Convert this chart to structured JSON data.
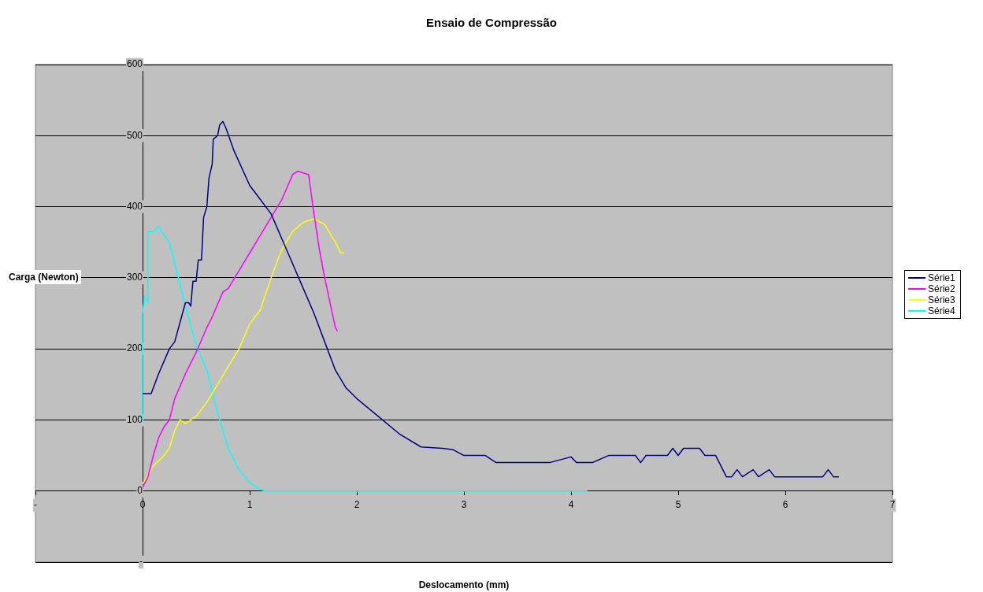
{
  "chart_data": {
    "type": "line",
    "title": "Ensaio de Compressão",
    "xlabel": "Deslocamento (mm)",
    "ylabel": "Carga (Newton)",
    "xlim": [
      -1,
      7
    ],
    "xticks": [
      {
        "value": -1,
        "label": "-"
      },
      0,
      1,
      2,
      3,
      4,
      5,
      6,
      7
    ],
    "ylim": [
      -100,
      600
    ],
    "yticks": [
      {
        "value": -100,
        "label": "-"
      },
      0,
      100,
      200,
      300,
      400,
      500,
      600
    ],
    "grid": "y",
    "legend": "right",
    "marker": "none",
    "line_style": "solid",
    "series": [
      {
        "name": "Série1",
        "color": "#000080",
        "x": [
          0,
          0.08,
          0.15,
          0.25,
          0.3,
          0.4,
          0.43,
          0.45,
          0.47,
          0.5,
          0.52,
          0.55,
          0.57,
          0.6,
          0.62,
          0.65,
          0.66,
          0.7,
          0.72,
          0.75,
          0.78,
          0.85,
          1.0,
          1.1,
          1.2,
          1.3,
          1.4,
          1.5,
          1.6,
          1.7,
          1.8,
          1.9,
          2.0,
          2.2,
          2.4,
          2.6,
          2.8,
          2.9,
          3.0,
          3.2,
          3.3,
          3.5,
          3.8,
          4.0,
          4.05,
          4.2,
          4.35,
          4.6,
          4.65,
          4.7,
          4.9,
          4.95,
          5.0,
          5.05,
          5.2,
          5.25,
          5.35,
          5.45,
          5.5,
          5.55,
          5.6,
          5.7,
          5.75,
          5.85,
          5.9,
          6.35,
          6.4,
          6.45,
          6.5
        ],
        "values": [
          137,
          137,
          165,
          200,
          210,
          265,
          265,
          260,
          295,
          295,
          325,
          325,
          385,
          400,
          440,
          460,
          495,
          500,
          515,
          520,
          510,
          480,
          430,
          410,
          390,
          355,
          320,
          285,
          250,
          210,
          170,
          145,
          130,
          105,
          80,
          62,
          60,
          58,
          50,
          50,
          40,
          40,
          40,
          48,
          40,
          40,
          50,
          50,
          40,
          50,
          50,
          60,
          50,
          60,
          60,
          50,
          50,
          20,
          20,
          30,
          20,
          30,
          20,
          30,
          20,
          20,
          30,
          20,
          20
        ]
      },
      {
        "name": "Série2",
        "color": "#ff00ff",
        "x": [
          0,
          0.05,
          0.1,
          0.15,
          0.2,
          0.25,
          0.3,
          0.4,
          0.5,
          0.6,
          0.65,
          0.75,
          0.8,
          0.9,
          1.0,
          1.1,
          1.2,
          1.3,
          1.4,
          1.45,
          1.55,
          1.6,
          1.65,
          1.7,
          1.8,
          1.82
        ],
        "values": [
          5,
          20,
          50,
          75,
          90,
          100,
          130,
          165,
          195,
          230,
          245,
          280,
          285,
          310,
          335,
          360,
          385,
          410,
          445,
          450,
          445,
          390,
          340,
          300,
          230,
          225
        ]
      },
      {
        "name": "Série3",
        "color": "#ffff00",
        "x": [
          0,
          0.1,
          0.2,
          0.25,
          0.3,
          0.35,
          0.4,
          0.5,
          0.6,
          0.7,
          0.8,
          0.9,
          1.0,
          1.1,
          1.2,
          1.3,
          1.4,
          1.5,
          1.6,
          1.7,
          1.8,
          1.85,
          1.88
        ],
        "values": [
          10,
          35,
          50,
          60,
          85,
          100,
          95,
          105,
          125,
          150,
          175,
          200,
          235,
          255,
          300,
          340,
          365,
          378,
          383,
          375,
          350,
          335,
          335
        ]
      },
      {
        "name": "Série4",
        "color": "#00ffff",
        "x": [
          0,
          0,
          0.02,
          0.05,
          0.05,
          0.1,
          0.15,
          0.2,
          0.25,
          0.3,
          0.4,
          0.5,
          0.6,
          0.7,
          0.8,
          0.9,
          1.0,
          1.1,
          1.15,
          4.15
        ],
        "values": [
          100,
          250,
          275,
          265,
          365,
          365,
          372,
          360,
          350,
          320,
          260,
          205,
          170,
          110,
          60,
          30,
          12,
          2,
          0,
          0
        ]
      }
    ]
  }
}
